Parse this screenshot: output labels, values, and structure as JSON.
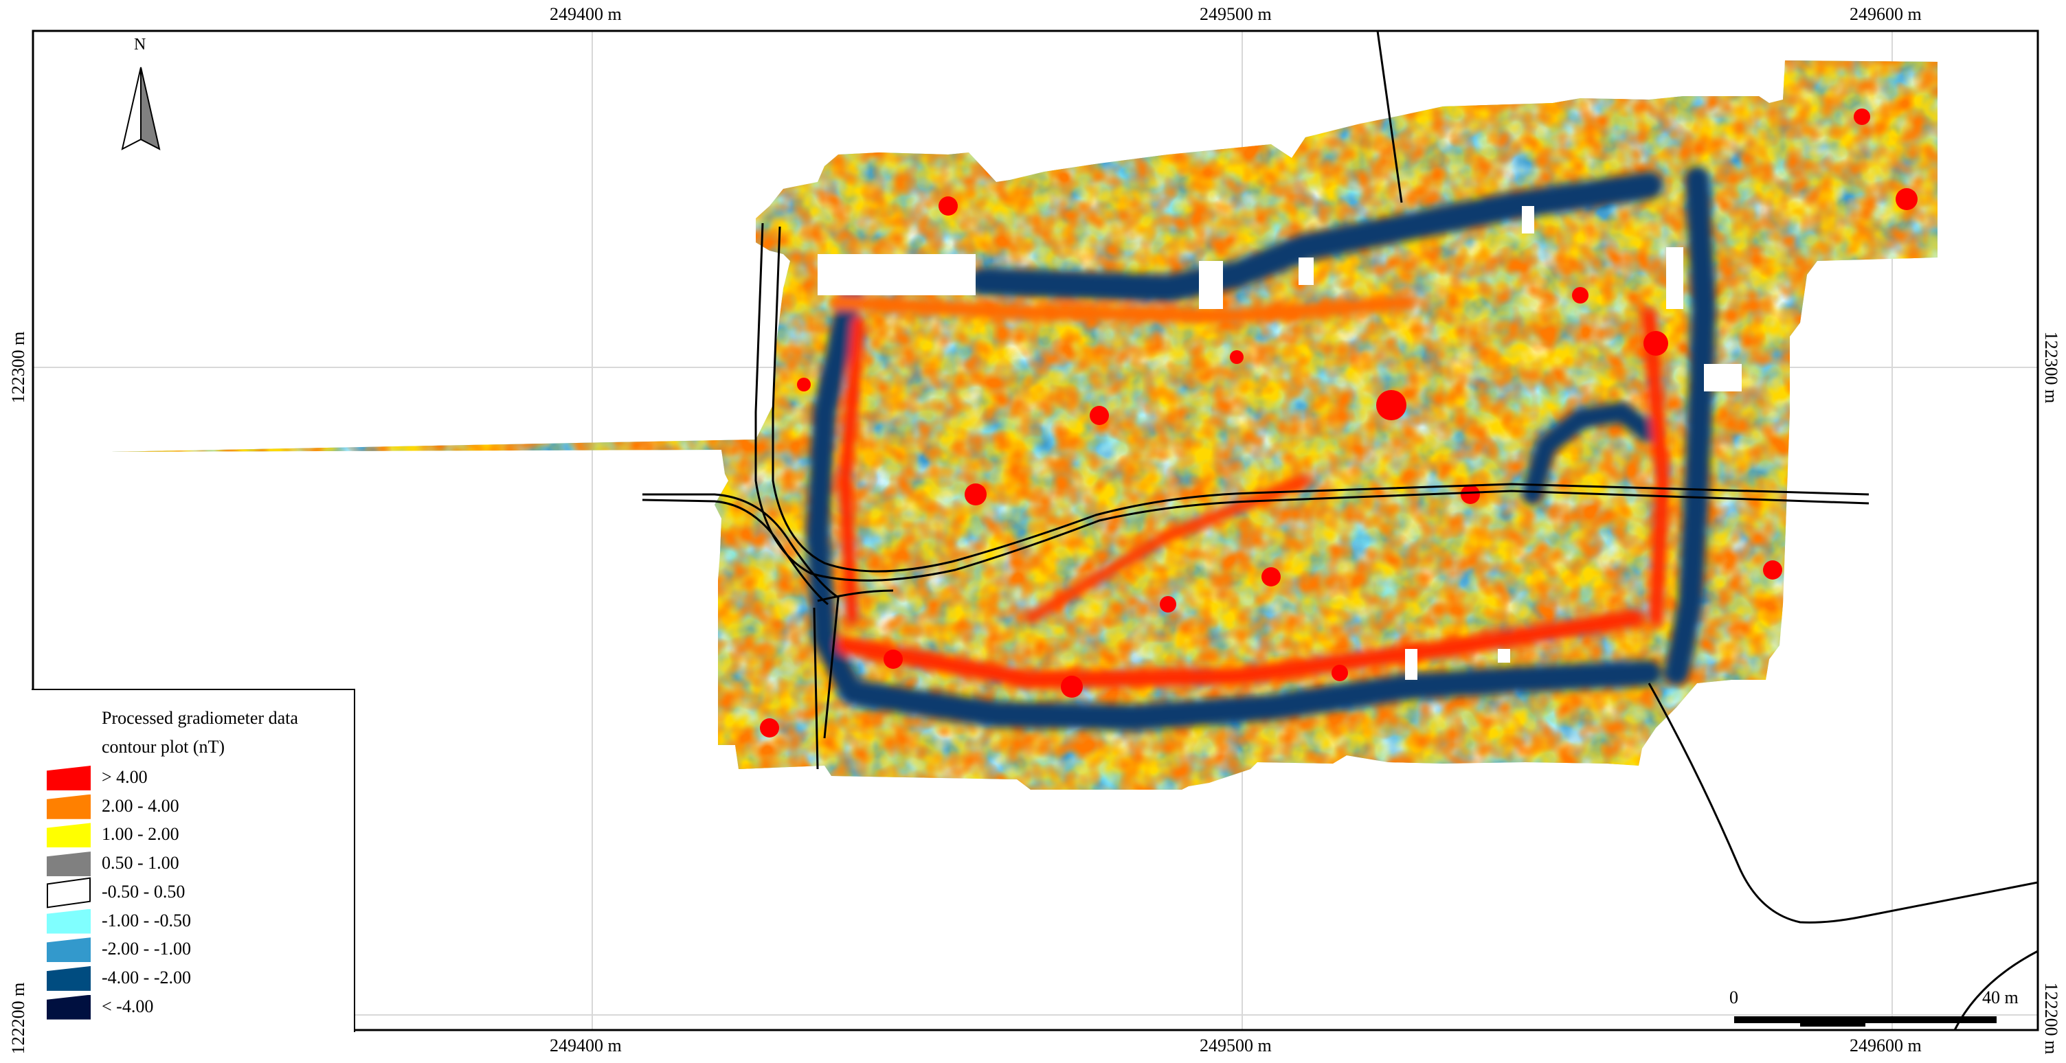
{
  "map": {
    "top_axis_labels": [
      "249400 m",
      "249500 m",
      "249600 m"
    ],
    "bottom_axis_labels": [
      "249400 m",
      "249500 m",
      "249600 m"
    ],
    "left_axis_labels": [
      "122300 m",
      "122200 m"
    ],
    "right_axis_labels": [
      "122300 m",
      "122200 m"
    ],
    "north_label": "N",
    "north_arrow_icon": "north-arrow-icon"
  },
  "legend": {
    "title_line1": "Processed gradiometer data",
    "title_line2": "contour plot (nT)",
    "classes": [
      {
        "label": "> 4.00",
        "color": "#ff0000"
      },
      {
        "label": "2.00 - 4.00",
        "color": "#ff8000"
      },
      {
        "label": "1.00 - 2.00",
        "color": "#ffff00"
      },
      {
        "label": "0.50 - 1.00",
        "color": "#808080"
      },
      {
        "label": "-0.50 - 0.50",
        "color": "#ffffff"
      },
      {
        "label": "-1.00 - -0.50",
        "color": "#80ffff"
      },
      {
        "label": "-2.00 - -1.00",
        "color": "#3399cc"
      },
      {
        "label": "-4.00 - -2.00",
        "color": "#004c80"
      },
      {
        "label": "< -4.00",
        "color": "#001040"
      }
    ]
  },
  "scale_bar": {
    "start_label": "0",
    "end_label": "40 m"
  }
}
